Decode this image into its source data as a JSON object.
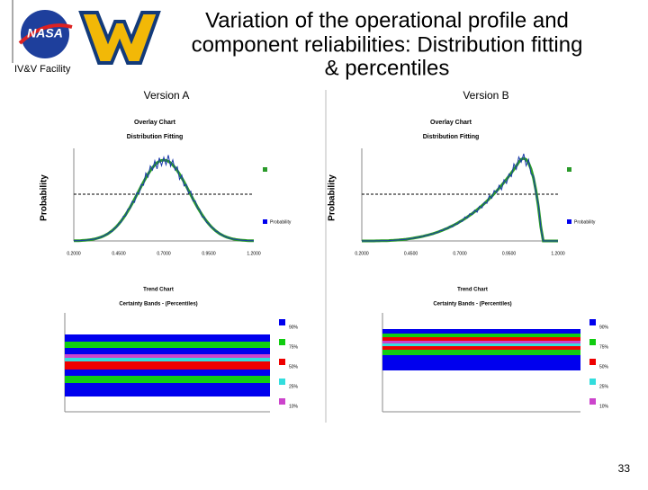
{
  "header": {
    "title_lines": [
      "Variation of the operational profile and",
      "component reliabilities: Distribution fitting",
      "& percentiles"
    ],
    "logo_text": "NASA",
    "facility": "IV&V Facility"
  },
  "panels": [
    {
      "label": "Version A",
      "overlay": {
        "title": "Overlay Chart",
        "subtitle": "Distribution Fitting",
        "y_label": "Probability",
        "x_ticks": [
          "0.2000",
          "0.4500",
          "0.7000",
          "0.9500",
          "1.2000"
        ],
        "legend": "Probability"
      },
      "trend": {
        "title": "Trend Chart",
        "subtitle": "Certainty Bands - (Percentiles)",
        "legend": [
          "90%",
          "75%",
          "50%",
          "25%",
          "10%"
        ]
      }
    },
    {
      "label": "Version B",
      "overlay": {
        "title": "Overlay Chart",
        "subtitle": "Distribution Fitting",
        "y_label": "Probability",
        "x_ticks": [
          "0.2000",
          "0.4500",
          "0.7000",
          "0.9500",
          "1.2000"
        ],
        "legend": "Probability"
      },
      "trend": {
        "title": "Trend Chart",
        "subtitle": "Certainty Bands - (Percentiles)",
        "legend": [
          "90%",
          "75%",
          "50%",
          "25%",
          "10%"
        ]
      }
    }
  ],
  "page_number": "33"
}
